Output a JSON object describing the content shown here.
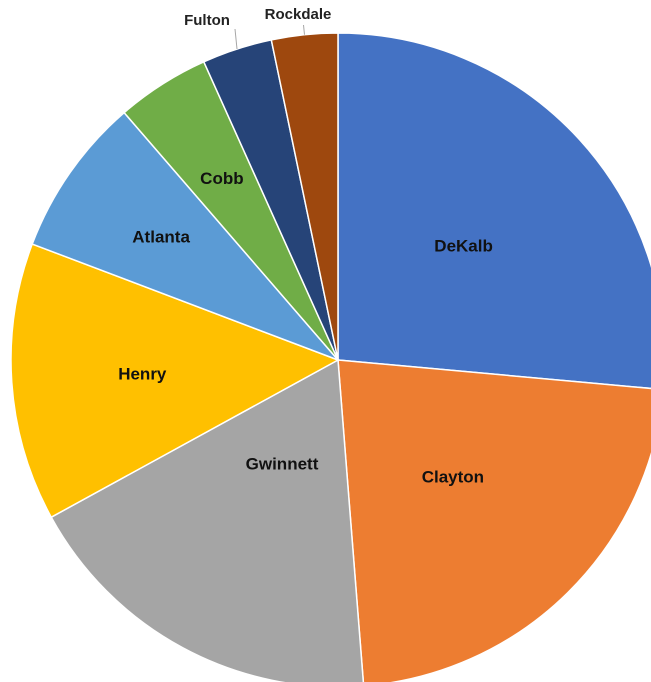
{
  "chart_data": {
    "type": "pie",
    "categories": [
      "DeKalb",
      "Clayton",
      "Gwinnett",
      "Henry",
      "Atlanta",
      "Cobb",
      "Fulton",
      "Rockdale"
    ],
    "values": [
      27.5,
      23.2,
      19.0,
      14.3,
      8.2,
      4.8,
      3.6,
      3.4
    ],
    "colors": [
      "#4472C4",
      "#ED7D31",
      "#A5A5A5",
      "#FFC000",
      "#5B9BD5",
      "#70AD47",
      "#264478",
      "#9E480E"
    ],
    "start_angle": "12 o'clock",
    "direction": "clockwise",
    "labels_inside": [
      "DeKalb",
      "Clayton",
      "Gwinnett",
      "Henry",
      "Atlanta",
      "Cobb"
    ],
    "labels_outside": [
      "Fulton",
      "Rockdale"
    ],
    "legend": "none",
    "title": ""
  }
}
